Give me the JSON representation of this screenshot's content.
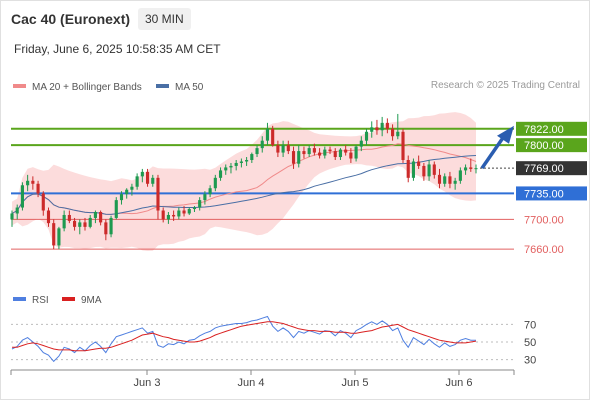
{
  "header": {
    "title": "Cac 40 (Euronext)",
    "timeframe": "30 MIN",
    "datetime": "Friday, June 6, 2025 10:58:35 AM CET",
    "copyright": "Research © 2025 Trading Central"
  },
  "colors": {
    "candle_up": "#1e9a50",
    "candle_down": "#cc2a2a",
    "bollinger_fill": "#fcd6d6",
    "ma20": "#f08a8a",
    "ma50": "#4a6fa5",
    "resistance": "#5aa51c",
    "support_pivot": "#2f6fd6",
    "support": "#e26060",
    "forecast_arrow": "#2a5db0",
    "rsi": "#4f7fe0",
    "rsi_ma": "#d92020",
    "current_price_box": "#333333"
  },
  "chart_data": [
    {
      "type": "candlestick",
      "title": "Cac 40 (Euronext)",
      "interval": "30 MIN",
      "x_ticks": [
        "Jun 3",
        "Jun 4",
        "Jun 5",
        "Jun 6"
      ],
      "y_range": [
        7640,
        7850
      ],
      "legend": [
        {
          "label": "MA 20 + Bollinger Bands",
          "color": "#f08a8a"
        },
        {
          "label": "MA 50",
          "color": "#4a6fa5"
        }
      ],
      "current_price": {
        "value": 7769,
        "label": "7769.00"
      },
      "levels": [
        {
          "value": 7822,
          "label": "7822.00",
          "role": "target",
          "color": "#5aa51c",
          "style": "filled"
        },
        {
          "value": 7800,
          "label": "7800.00",
          "role": "resistance",
          "color": "#5aa51c",
          "style": "filled"
        },
        {
          "value": 7735,
          "label": "7735.00",
          "role": "pivot",
          "color": "#2f6fd6",
          "style": "filled"
        },
        {
          "value": 7700,
          "label": "7700.00",
          "role": "support",
          "color": "#e26060",
          "style": "text"
        },
        {
          "value": 7660,
          "label": "7660.00",
          "role": "support",
          "color": "#e26060",
          "style": "text"
        }
      ],
      "forecast": {
        "from": 7769,
        "to": 7822,
        "direction": "up"
      },
      "candles": [
        [
          7700,
          7712,
          7690,
          7708
        ],
        [
          7708,
          7720,
          7700,
          7716
        ],
        [
          7716,
          7750,
          7712,
          7746
        ],
        [
          7746,
          7760,
          7738,
          7752
        ],
        [
          7752,
          7758,
          7740,
          7748
        ],
        [
          7748,
          7752,
          7730,
          7735
        ],
        [
          7735,
          7738,
          7705,
          7712
        ],
        [
          7712,
          7716,
          7690,
          7695
        ],
        [
          7695,
          7700,
          7660,
          7665
        ],
        [
          7665,
          7690,
          7660,
          7688
        ],
        [
          7688,
          7712,
          7684,
          7706
        ],
        [
          7706,
          7712,
          7695,
          7698
        ],
        [
          7698,
          7702,
          7685,
          7690
        ],
        [
          7690,
          7700,
          7680,
          7696
        ],
        [
          7696,
          7702,
          7685,
          7690
        ],
        [
          7690,
          7706,
          7688,
          7702
        ],
        [
          7702,
          7712,
          7695,
          7710
        ],
        [
          7710,
          7712,
          7692,
          7696
        ],
        [
          7696,
          7700,
          7672,
          7680
        ],
        [
          7680,
          7705,
          7676,
          7702
        ],
        [
          7702,
          7730,
          7700,
          7726
        ],
        [
          7726,
          7738,
          7720,
          7734
        ],
        [
          7734,
          7742,
          7728,
          7740
        ],
        [
          7740,
          7748,
          7732,
          7744
        ],
        [
          7744,
          7762,
          7740,
          7758
        ],
        [
          7758,
          7768,
          7750,
          7764
        ],
        [
          7764,
          7768,
          7744,
          7748
        ],
        [
          7748,
          7760,
          7744,
          7756
        ],
        [
          7756,
          7760,
          7700,
          7712
        ],
        [
          7712,
          7716,
          7696,
          7700
        ],
        [
          7700,
          7710,
          7694,
          7706
        ],
        [
          7706,
          7712,
          7698,
          7704
        ],
        [
          7704,
          7716,
          7700,
          7712
        ],
        [
          7712,
          7718,
          7704,
          7708
        ],
        [
          7708,
          7716,
          7706,
          7714
        ],
        [
          7714,
          7718,
          7710,
          7716
        ],
        [
          7716,
          7730,
          7712,
          7726
        ],
        [
          7726,
          7738,
          7720,
          7734
        ],
        [
          7734,
          7746,
          7730,
          7742
        ],
        [
          7742,
          7760,
          7738,
          7756
        ],
        [
          7756,
          7770,
          7752,
          7766
        ],
        [
          7766,
          7774,
          7760,
          7770
        ],
        [
          7770,
          7776,
          7762,
          7772
        ],
        [
          7772,
          7780,
          7766,
          7776
        ],
        [
          7776,
          7782,
          7770,
          7778
        ],
        [
          7778,
          7784,
          7772,
          7780
        ],
        [
          7780,
          7790,
          7776,
          7788
        ],
        [
          7788,
          7800,
          7784,
          7796
        ],
        [
          7796,
          7812,
          7790,
          7806
        ],
        [
          7806,
          7830,
          7800,
          7822
        ],
        [
          7822,
          7826,
          7798,
          7800
        ],
        [
          7800,
          7806,
          7784,
          7790
        ],
        [
          7790,
          7806,
          7784,
          7800
        ],
        [
          7800,
          7806,
          7788,
          7792
        ],
        [
          7792,
          7798,
          7768,
          7775
        ],
        [
          7775,
          7800,
          7770,
          7792
        ],
        [
          7792,
          7798,
          7782,
          7788
        ],
        [
          7788,
          7800,
          7784,
          7796
        ],
        [
          7796,
          7802,
          7786,
          7790
        ],
        [
          7790,
          7796,
          7782,
          7786
        ],
        [
          7786,
          7798,
          7782,
          7794
        ],
        [
          7794,
          7798,
          7788,
          7792
        ],
        [
          7792,
          7796,
          7780,
          7784
        ],
        [
          7784,
          7796,
          7780,
          7794
        ],
        [
          7794,
          7800,
          7786,
          7790
        ],
        [
          7790,
          7796,
          7776,
          7782
        ],
        [
          7782,
          7800,
          7778,
          7798
        ],
        [
          7798,
          7812,
          7792,
          7806
        ],
        [
          7806,
          7822,
          7800,
          7818
        ],
        [
          7818,
          7832,
          7810,
          7824
        ],
        [
          7824,
          7834,
          7814,
          7820
        ],
        [
          7820,
          7838,
          7812,
          7830
        ],
        [
          7830,
          7836,
          7816,
          7822
        ],
        [
          7822,
          7828,
          7806,
          7812
        ],
        [
          7812,
          7842,
          7808,
          7818
        ],
        [
          7818,
          7822,
          7776,
          7780
        ],
        [
          7780,
          7786,
          7750,
          7756
        ],
        [
          7756,
          7782,
          7752,
          7778
        ],
        [
          7778,
          7786,
          7768,
          7772
        ],
        [
          7772,
          7776,
          7752,
          7758
        ],
        [
          7758,
          7780,
          7752,
          7774
        ],
        [
          7774,
          7778,
          7755,
          7760
        ],
        [
          7760,
          7768,
          7742,
          7748
        ],
        [
          7748,
          7762,
          7744,
          7758
        ],
        [
          7758,
          7764,
          7742,
          7748
        ],
        [
          7748,
          7756,
          7740,
          7752
        ],
        [
          7752,
          7770,
          7748,
          7766
        ],
        [
          7766,
          7774,
          7760,
          7770
        ],
        [
          7770,
          7782,
          7764,
          7768
        ],
        [
          7768,
          7774,
          7762,
          7769
        ]
      ]
    },
    {
      "type": "line",
      "name": "RSI panel",
      "legend": [
        {
          "label": "RSI",
          "color": "#4f7fe0"
        },
        {
          "label": "9MA",
          "color": "#d92020"
        }
      ],
      "y_ticks": [
        70,
        50,
        30
      ],
      "series": [
        {
          "name": "RSI",
          "values": [
            42,
            45,
            52,
            55,
            50,
            45,
            38,
            35,
            28,
            34,
            44,
            42,
            38,
            44,
            40,
            46,
            50,
            45,
            38,
            48,
            56,
            58,
            60,
            62,
            64,
            66,
            60,
            62,
            46,
            44,
            48,
            47,
            50,
            48,
            52,
            53,
            57,
            60,
            62,
            66,
            68,
            69,
            70,
            71,
            71,
            72,
            74,
            75,
            77,
            79,
            68,
            62,
            66,
            62,
            55,
            62,
            60,
            63,
            61,
            59,
            63,
            62,
            57,
            63,
            60,
            55,
            63,
            66,
            70,
            73,
            70,
            74,
            70,
            63,
            66,
            52,
            44,
            55,
            51,
            47,
            53,
            48,
            44,
            49,
            45,
            47,
            52,
            54,
            52,
            52
          ]
        },
        {
          "name": "9MA",
          "values": [
            44,
            44,
            46,
            48,
            49,
            48,
            46,
            44,
            42,
            41,
            41,
            41,
            40,
            40,
            40,
            41,
            42,
            43,
            43,
            44,
            46,
            48,
            50,
            52,
            55,
            58,
            59,
            60,
            58,
            56,
            55,
            53,
            52,
            51,
            50,
            50,
            51,
            53,
            55,
            58,
            60,
            62,
            64,
            66,
            68,
            69,
            70,
            71,
            72,
            73,
            73,
            72,
            71,
            69,
            67,
            65,
            64,
            63,
            63,
            62,
            62,
            62,
            61,
            61,
            61,
            60,
            60,
            61,
            62,
            63,
            65,
            67,
            68,
            69,
            70,
            67,
            64,
            62,
            60,
            58,
            56,
            54,
            52,
            51,
            50,
            49,
            49,
            49,
            50,
            51
          ]
        }
      ]
    }
  ]
}
